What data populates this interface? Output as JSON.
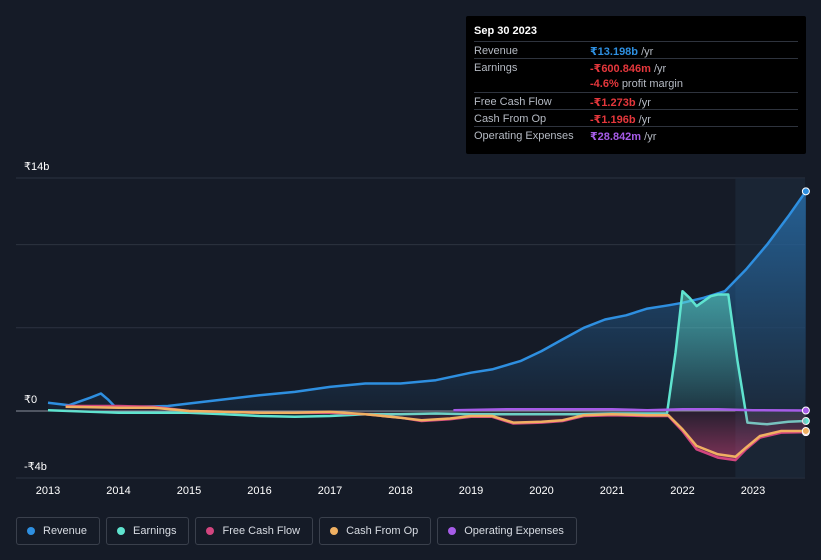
{
  "tooltip": {
    "date": "Sep 30 2023",
    "rows": {
      "revenue": {
        "label": "Revenue",
        "value": "₹13.198b",
        "unit": "/yr",
        "color": "#2e8fe0"
      },
      "earnings": {
        "label": "Earnings",
        "value": "-₹600.846m",
        "unit": "/yr",
        "color": "#e5373c"
      },
      "margin": {
        "value": "-4.6%",
        "unit": "profit margin",
        "color": "#e5373c"
      },
      "fcf": {
        "label": "Free Cash Flow",
        "value": "-₹1.273b",
        "unit": "/yr",
        "color": "#e5373c"
      },
      "cfo": {
        "label": "Cash From Op",
        "value": "-₹1.196b",
        "unit": "/yr",
        "color": "#e5373c"
      },
      "opex": {
        "label": "Operating Expenses",
        "value": "₹28.842m",
        "unit": "/yr",
        "color": "#a65ce8"
      }
    }
  },
  "y_axis": {
    "top_label": "₹14b",
    "zero_label": "₹0",
    "bottom_label": "-₹4b"
  },
  "legend": [
    {
      "label": "Revenue",
      "color": "#2e8fe0"
    },
    {
      "label": "Earnings",
      "color": "#5fe3cf"
    },
    {
      "label": "Free Cash Flow",
      "color": "#d2457f"
    },
    {
      "label": "Cash From Op",
      "color": "#f0b062"
    },
    {
      "label": "Operating Expenses",
      "color": "#a65ce8"
    }
  ],
  "chart_data": {
    "type": "line",
    "title": "",
    "units": "₹ billions",
    "xlim": [
      2012.6,
      2023.75
    ],
    "ylim": [
      -4,
      14
    ],
    "x_ticks": [
      "2013",
      "2014",
      "2015",
      "2016",
      "2017",
      "2018",
      "2019",
      "2020",
      "2021",
      "2022",
      "2023"
    ],
    "highlight_start": 2022.75,
    "series": [
      {
        "name": "Revenue",
        "color": "#2e8fe0",
        "fill": true,
        "points": [
          [
            2013.0,
            0.5
          ],
          [
            2013.3,
            0.35
          ],
          [
            2013.6,
            0.8
          ],
          [
            2013.75,
            1.05
          ],
          [
            2013.85,
            0.7
          ],
          [
            2013.95,
            0.25
          ],
          [
            2014.3,
            0.25
          ],
          [
            2014.7,
            0.3
          ],
          [
            2015.0,
            0.45
          ],
          [
            2015.5,
            0.7
          ],
          [
            2016.0,
            0.95
          ],
          [
            2016.5,
            1.15
          ],
          [
            2017.0,
            1.45
          ],
          [
            2017.5,
            1.65
          ],
          [
            2018.0,
            1.65
          ],
          [
            2018.5,
            1.85
          ],
          [
            2019.0,
            2.3
          ],
          [
            2019.3,
            2.5
          ],
          [
            2019.7,
            3.0
          ],
          [
            2020.0,
            3.6
          ],
          [
            2020.3,
            4.3
          ],
          [
            2020.6,
            5.0
          ],
          [
            2020.9,
            5.5
          ],
          [
            2021.2,
            5.75
          ],
          [
            2021.5,
            6.15
          ],
          [
            2021.8,
            6.35
          ],
          [
            2022.0,
            6.5
          ],
          [
            2022.3,
            6.8
          ],
          [
            2022.6,
            7.2
          ],
          [
            2022.9,
            8.5
          ],
          [
            2023.2,
            10.0
          ],
          [
            2023.5,
            11.7
          ],
          [
            2023.75,
            13.2
          ]
        ]
      },
      {
        "name": "Earnings",
        "color": "#5fe3cf",
        "fill": true,
        "points": [
          [
            2013.0,
            0.05
          ],
          [
            2014.0,
            -0.1
          ],
          [
            2015.0,
            -0.1
          ],
          [
            2015.5,
            -0.2
          ],
          [
            2016.0,
            -0.3
          ],
          [
            2016.5,
            -0.35
          ],
          [
            2017.0,
            -0.3
          ],
          [
            2017.5,
            -0.2
          ],
          [
            2018.0,
            -0.2
          ],
          [
            2018.5,
            -0.15
          ],
          [
            2019.0,
            -0.2
          ],
          [
            2019.5,
            -0.2
          ],
          [
            2020.0,
            -0.2
          ],
          [
            2020.5,
            -0.2
          ],
          [
            2021.0,
            -0.15
          ],
          [
            2021.5,
            -0.15
          ],
          [
            2021.78,
            -0.15
          ],
          [
            2021.9,
            3.5
          ],
          [
            2022.0,
            7.2
          ],
          [
            2022.1,
            6.8
          ],
          [
            2022.2,
            6.3
          ],
          [
            2022.3,
            6.6
          ],
          [
            2022.4,
            6.9
          ],
          [
            2022.5,
            7.0
          ],
          [
            2022.65,
            7.0
          ],
          [
            2022.78,
            3.0
          ],
          [
            2022.92,
            -0.7
          ],
          [
            2023.2,
            -0.8
          ],
          [
            2023.5,
            -0.65
          ],
          [
            2023.75,
            -0.6
          ]
        ]
      },
      {
        "name": "Free Cash Flow",
        "color": "#d2457f",
        "fill": true,
        "points": [
          [
            2013.25,
            0.3
          ],
          [
            2014.0,
            0.3
          ],
          [
            2014.5,
            0.25
          ],
          [
            2015.0,
            0.0
          ],
          [
            2015.5,
            -0.05
          ],
          [
            2016.0,
            -0.1
          ],
          [
            2016.5,
            -0.1
          ],
          [
            2017.0,
            -0.1
          ],
          [
            2017.5,
            -0.2
          ],
          [
            2018.0,
            -0.4
          ],
          [
            2018.3,
            -0.6
          ],
          [
            2018.7,
            -0.5
          ],
          [
            2019.0,
            -0.35
          ],
          [
            2019.3,
            -0.35
          ],
          [
            2019.6,
            -0.75
          ],
          [
            2020.0,
            -0.7
          ],
          [
            2020.3,
            -0.6
          ],
          [
            2020.6,
            -0.3
          ],
          [
            2021.0,
            -0.25
          ],
          [
            2021.5,
            -0.3
          ],
          [
            2021.8,
            -0.3
          ],
          [
            2022.0,
            -1.2
          ],
          [
            2022.2,
            -2.3
          ],
          [
            2022.5,
            -2.8
          ],
          [
            2022.75,
            -2.95
          ],
          [
            2022.9,
            -2.3
          ],
          [
            2023.1,
            -1.6
          ],
          [
            2023.4,
            -1.3
          ],
          [
            2023.75,
            -1.27
          ]
        ]
      },
      {
        "name": "Cash From Op",
        "color": "#f0b062",
        "fill": false,
        "points": [
          [
            2013.25,
            0.25
          ],
          [
            2014.0,
            0.2
          ],
          [
            2014.5,
            0.2
          ],
          [
            2015.0,
            0.0
          ],
          [
            2015.5,
            -0.05
          ],
          [
            2016.0,
            -0.1
          ],
          [
            2016.5,
            -0.1
          ],
          [
            2017.0,
            -0.05
          ],
          [
            2017.5,
            -0.2
          ],
          [
            2018.0,
            -0.4
          ],
          [
            2018.3,
            -0.55
          ],
          [
            2018.7,
            -0.45
          ],
          [
            2019.0,
            -0.3
          ],
          [
            2019.3,
            -0.3
          ],
          [
            2019.6,
            -0.7
          ],
          [
            2020.0,
            -0.65
          ],
          [
            2020.3,
            -0.55
          ],
          [
            2020.6,
            -0.25
          ],
          [
            2021.0,
            -0.2
          ],
          [
            2021.5,
            -0.25
          ],
          [
            2021.8,
            -0.25
          ],
          [
            2022.0,
            -1.1
          ],
          [
            2022.2,
            -2.1
          ],
          [
            2022.5,
            -2.6
          ],
          [
            2022.75,
            -2.75
          ],
          [
            2022.9,
            -2.2
          ],
          [
            2023.1,
            -1.5
          ],
          [
            2023.4,
            -1.2
          ],
          [
            2023.75,
            -1.2
          ]
        ]
      },
      {
        "name": "Operating Expenses",
        "color": "#a65ce8",
        "fill": false,
        "points": [
          [
            2018.75,
            0.05
          ],
          [
            2019.5,
            0.1
          ],
          [
            2020.5,
            0.1
          ],
          [
            2021.0,
            0.1
          ],
          [
            2021.5,
            0.05
          ],
          [
            2022.0,
            0.1
          ],
          [
            2022.5,
            0.1
          ],
          [
            2023.0,
            0.05
          ],
          [
            2023.75,
            0.03
          ]
        ]
      }
    ]
  }
}
